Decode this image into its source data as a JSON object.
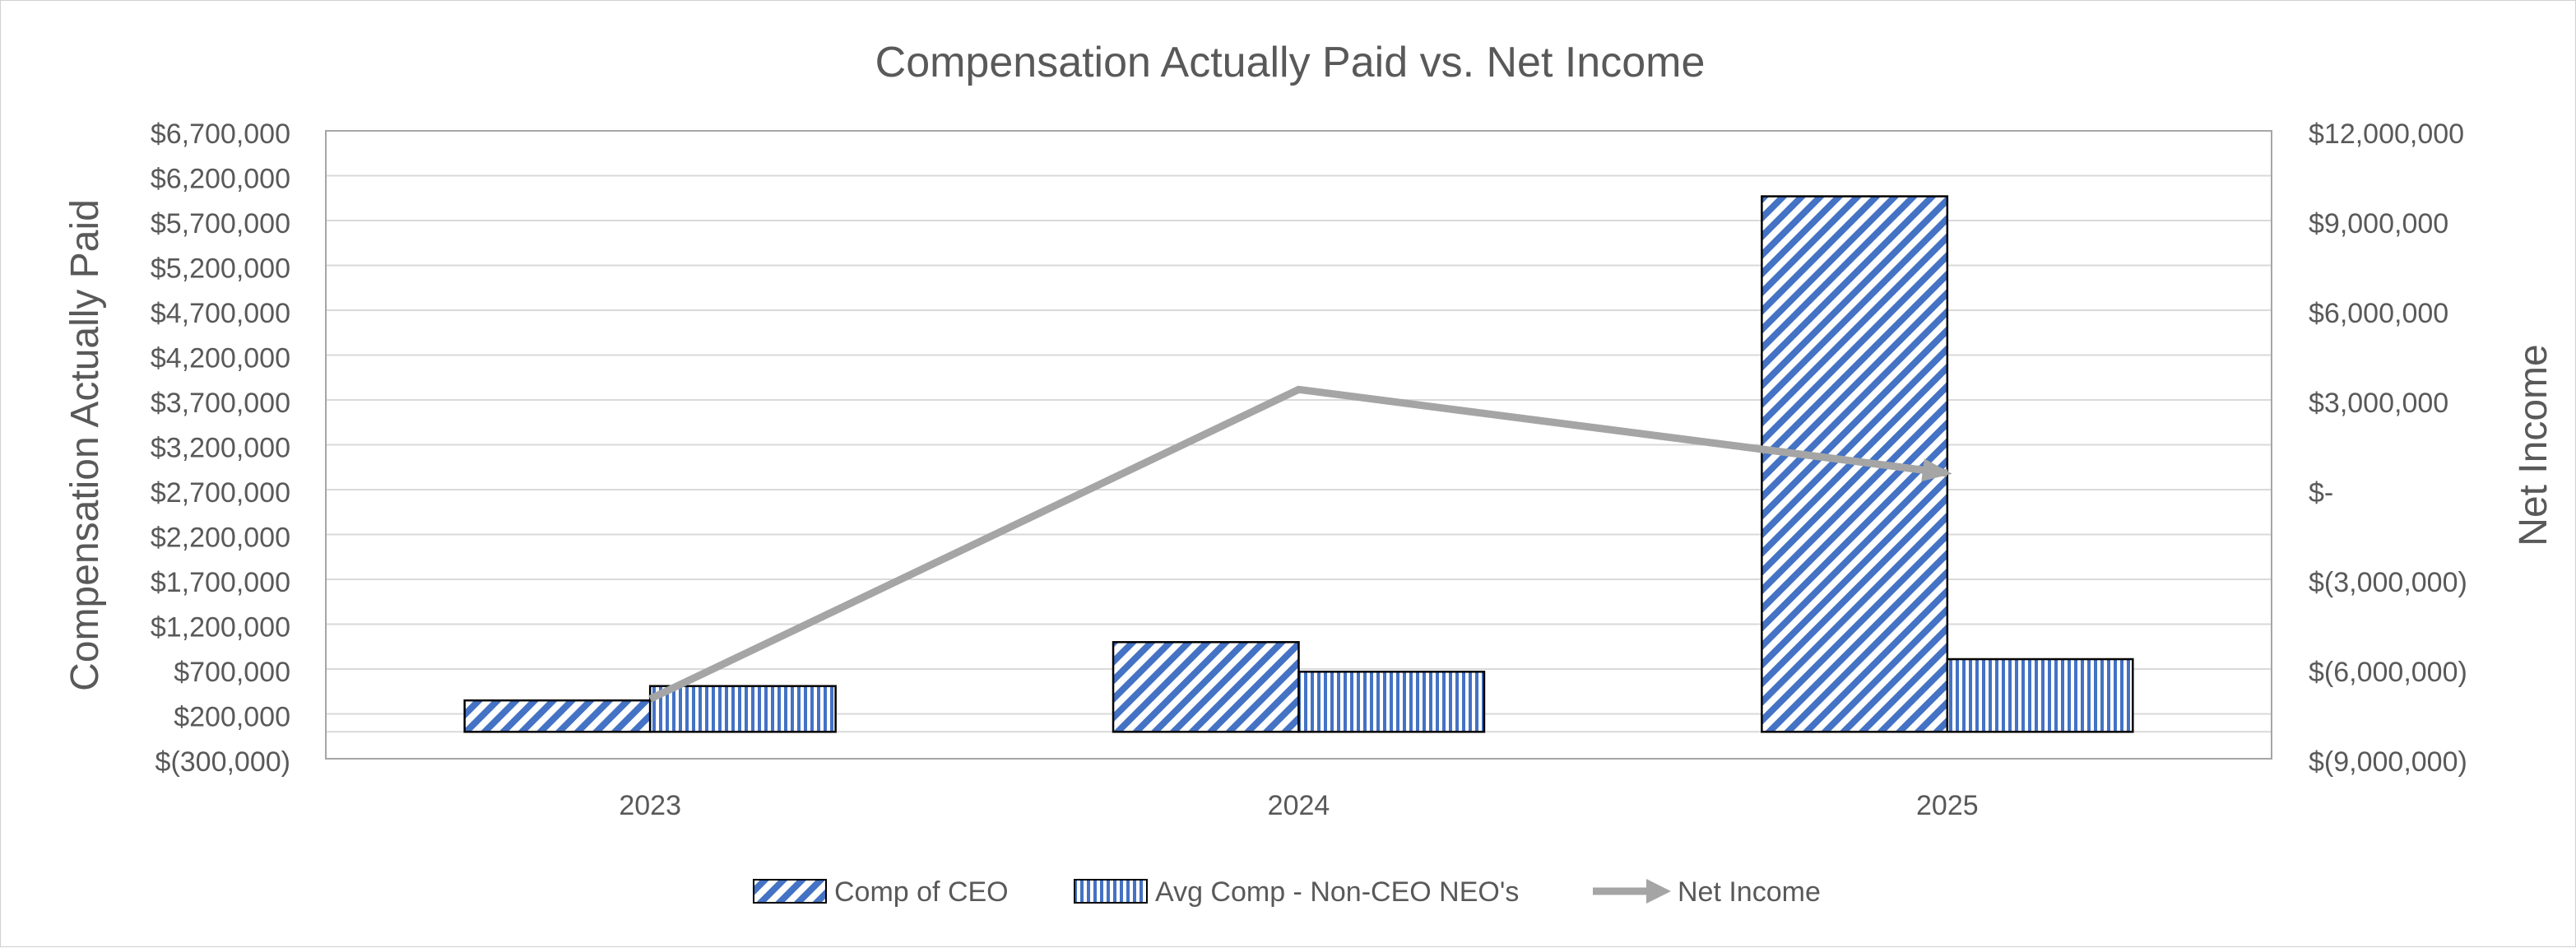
{
  "chart_data": {
    "type": "bar",
    "title": "Compensation Actually Paid vs. Net Income",
    "categories": [
      "2023",
      "2024",
      "2025"
    ],
    "ylabel": "Compensation Actually Paid",
    "y2label": "Net Income",
    "ylim": [
      -300000,
      6700000
    ],
    "yticks": [
      -300000,
      200000,
      700000,
      1200000,
      1700000,
      2200000,
      2700000,
      3200000,
      3700000,
      4200000,
      4700000,
      5200000,
      5700000,
      6200000,
      6700000
    ],
    "ytick_labels": [
      "$(300,000)",
      "$200,000",
      "$700,000",
      "$1,200,000",
      "$1,700,000",
      "$2,200,000",
      "$2,700,000",
      "$3,200,000",
      "$3,700,000",
      "$4,200,000",
      "$4,700,000",
      "$5,200,000",
      "$5,700,000",
      "$6,200,000",
      "$6,700,000"
    ],
    "y2lim": [
      -9000000,
      12000000
    ],
    "y2ticks": [
      -9000000,
      -6000000,
      -3000000,
      0,
      3000000,
      6000000,
      9000000,
      12000000
    ],
    "y2tick_labels": [
      "$(9,000,000)",
      "$(6,000,000)",
      "$(3,000,000)",
      "$-",
      "$3,000,000",
      "$6,000,000",
      "$9,000,000",
      "$12,000,000"
    ],
    "bar_baseline": 0,
    "series": [
      {
        "name": "Comp of CEO",
        "type": "bar",
        "axis": "left",
        "pattern": "diagonal",
        "color": "#4472C4",
        "values": [
          350000,
          1000000,
          5970000
        ]
      },
      {
        "name": "Avg Comp - Non-CEO NEO's",
        "type": "bar",
        "axis": "left",
        "pattern": "vertical",
        "color": "#4472C4",
        "values": [
          510000,
          670000,
          810000
        ]
      },
      {
        "name": "Net Income",
        "type": "line",
        "axis": "right",
        "color": "#A5A5A5",
        "values": [
          -7000000,
          3350000,
          550000
        ]
      }
    ],
    "grid": true,
    "legend": "bottom"
  }
}
